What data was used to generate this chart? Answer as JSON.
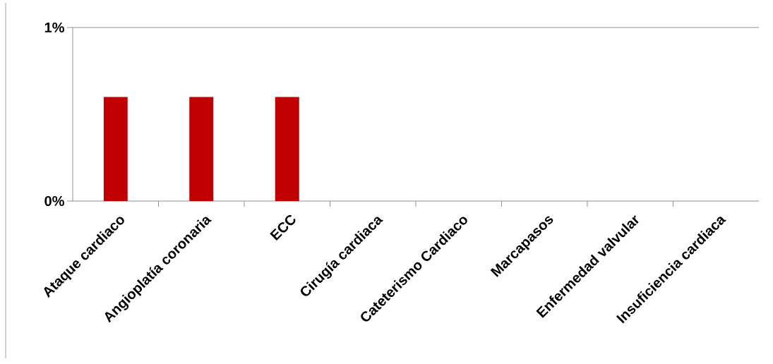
{
  "chart_data": {
    "type": "bar",
    "categories": [
      "Ataque cardiaco",
      "Angioplatía coronaria",
      "ECC",
      "Cirugía cardiaca",
      "Cateterismo Cardiaco",
      "Marcapasos",
      "Enfermedad valvular",
      "Insuficiencia cardiaca"
    ],
    "values": [
      0.6,
      0.6,
      0.6,
      0,
      0,
      0,
      0,
      0
    ],
    "color": "#c00000",
    "ylim": [
      0,
      1
    ],
    "yticks": [
      {
        "value": 0,
        "label": "0%"
      },
      {
        "value": 1,
        "label": "1%"
      }
    ]
  }
}
